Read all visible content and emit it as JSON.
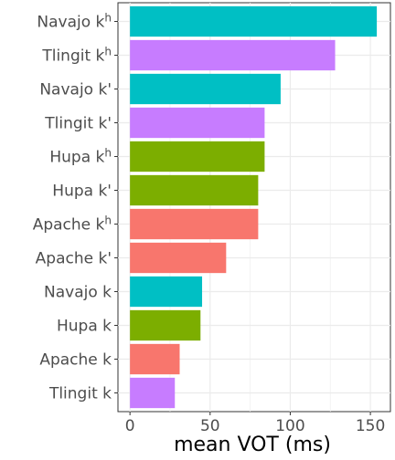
{
  "chart_data": {
    "type": "bar",
    "orientation": "horizontal",
    "xlabel": "mean VOT (ms)",
    "ylabel": "",
    "xlim": [
      0,
      155
    ],
    "x_ticks": [
      0,
      50,
      100,
      150
    ],
    "grid": true,
    "legend": "none",
    "categories": [
      "Navajo kʰ",
      "Tlingit kʰ",
      "Navajo k'",
      "Tlingit k'",
      "Hupa kʰ",
      "Hupa k'",
      "Apache kʰ",
      "Apache k'",
      "Navajo k",
      "Hupa k",
      "Apache k",
      "Tlingit k"
    ],
    "values": [
      154,
      128,
      94,
      84,
      84,
      80,
      80,
      60,
      45,
      44,
      31,
      28
    ],
    "bar_colors": [
      "#00BFC4",
      "#C77CFF",
      "#00BFC4",
      "#C77CFF",
      "#7CAE00",
      "#7CAE00",
      "#F8766D",
      "#F8766D",
      "#00BFC4",
      "#7CAE00",
      "#F8766D",
      "#C77CFF"
    ]
  }
}
